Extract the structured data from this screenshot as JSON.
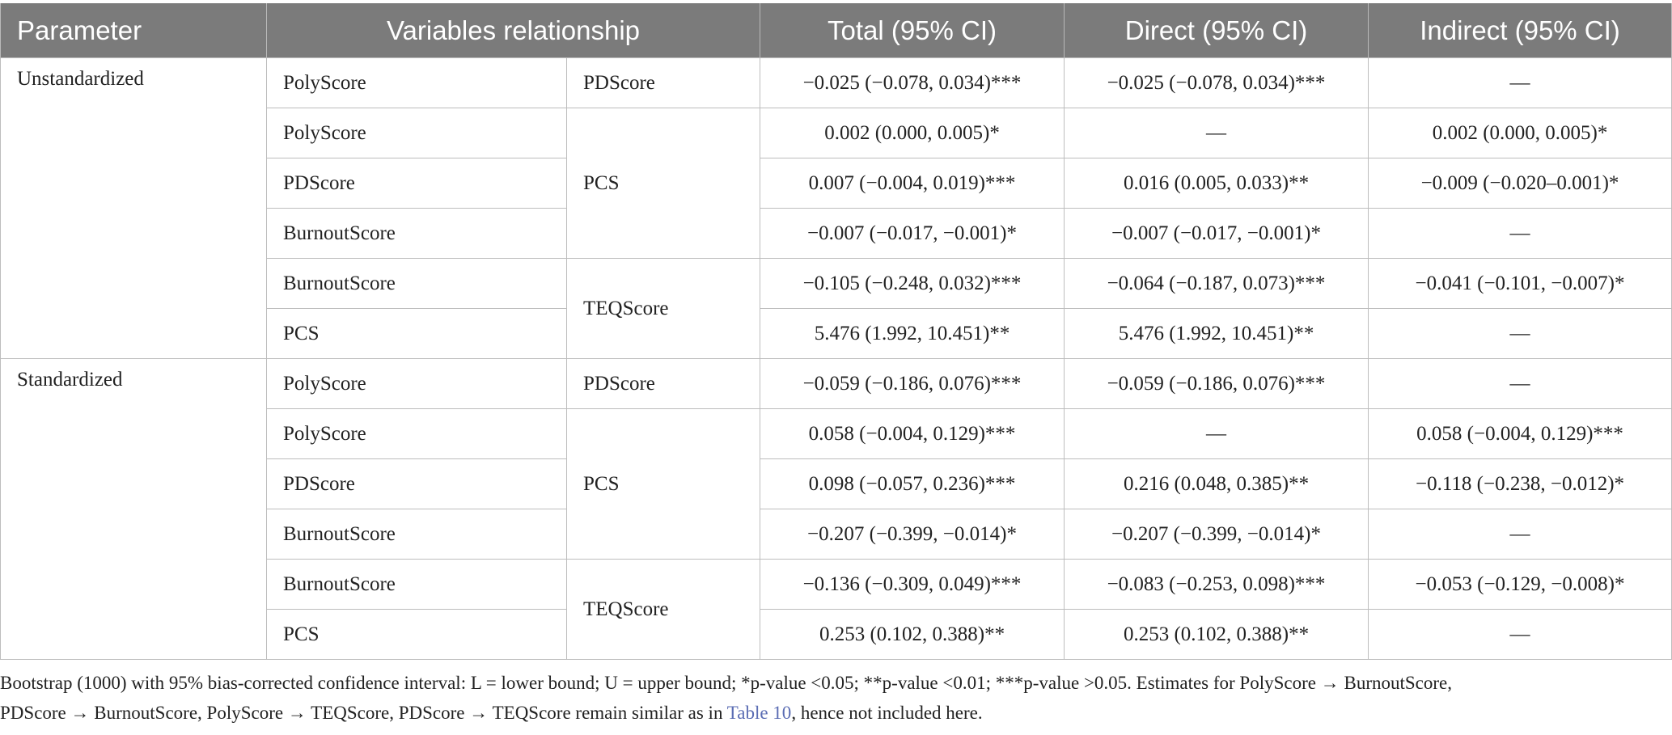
{
  "table": {
    "headers": [
      "Parameter",
      "Variables relationship",
      "Total (95% CI)",
      "Direct (95% CI)",
      "Indirect (95% CI)"
    ],
    "groups": [
      {
        "parameter": "Unstandardized",
        "blocks": [
          {
            "outcome": "PDScore",
            "rows": [
              {
                "predictor": "PolyScore",
                "total": "−0.025 (−0.078, 0.034)***",
                "direct": "−0.025 (−0.078, 0.034)***",
                "indirect": "—"
              }
            ]
          },
          {
            "outcome": "PCS",
            "rows": [
              {
                "predictor": "PolyScore",
                "total": "0.002 (0.000, 0.005)*",
                "direct": "—",
                "indirect": "0.002 (0.000, 0.005)*"
              },
              {
                "predictor": "PDScore",
                "total": "0.007 (−0.004, 0.019)***",
                "direct": "0.016 (0.005, 0.033)**",
                "indirect": "−0.009 (−0.020–0.001)*"
              },
              {
                "predictor": "BurnoutScore",
                "total": "−0.007 (−0.017, −0.001)*",
                "direct": "−0.007 (−0.017, −0.001)*",
                "indirect": "—"
              }
            ]
          },
          {
            "outcome": "TEQScore",
            "rows": [
              {
                "predictor": "BurnoutScore",
                "total": "−0.105 (−0.248, 0.032)***",
                "direct": "−0.064 (−0.187, 0.073)***",
                "indirect": "−0.041 (−0.101, −0.007)*"
              },
              {
                "predictor": "PCS",
                "total": "5.476 (1.992, 10.451)**",
                "direct": "5.476 (1.992, 10.451)**",
                "indirect": "—"
              }
            ]
          }
        ]
      },
      {
        "parameter": "Standardized",
        "blocks": [
          {
            "outcome": "PDScore",
            "rows": [
              {
                "predictor": "PolyScore",
                "total": "−0.059 (−0.186, 0.076)***",
                "direct": "−0.059 (−0.186, 0.076)***",
                "indirect": "—"
              }
            ]
          },
          {
            "outcome": "PCS",
            "rows": [
              {
                "predictor": "PolyScore",
                "total": "0.058 (−0.004, 0.129)***",
                "direct": "—",
                "indirect": "0.058 (−0.004, 0.129)***"
              },
              {
                "predictor": "PDScore",
                "total": "0.098 (−0.057, 0.236)***",
                "direct": "0.216 (0.048, 0.385)**",
                "indirect": "−0.118 (−0.238, −0.012)*"
              },
              {
                "predictor": "BurnoutScore",
                "total": "−0.207 (−0.399, −0.014)*",
                "direct": "−0.207 (−0.399, −0.014)*",
                "indirect": "—"
              }
            ]
          },
          {
            "outcome": "TEQScore",
            "rows": [
              {
                "predictor": "BurnoutScore",
                "total": "−0.136 (−0.309, 0.049)***",
                "direct": "−0.083 (−0.253, 0.098)***",
                "indirect": "−0.053 (−0.129, −0.008)*"
              },
              {
                "predictor": "PCS",
                "total": "0.253 (0.102, 0.388)**",
                "direct": "0.253 (0.102, 0.388)**",
                "indirect": "—"
              }
            ]
          }
        ]
      }
    ]
  },
  "footnote": {
    "line1": "Bootstrap (1000) with 95% bias-corrected confidence interval: L = lower bound; U = upper bound; *p-value <0.05; **p-value <0.01; ***p-value >0.05. Estimates for PolyScore → BurnoutScore,",
    "line2_before": "PDScore → BurnoutScore, PolyScore → TEQScore, PDScore → TEQScore remain similar as in ",
    "line2_link": "Table 10",
    "line2_after": ", hence not included here."
  },
  "colors": {
    "header_bg": "#7b7b7b",
    "header_text": "#ffffff",
    "grid": "#bdbdbd",
    "link": "#5a6cb3"
  }
}
